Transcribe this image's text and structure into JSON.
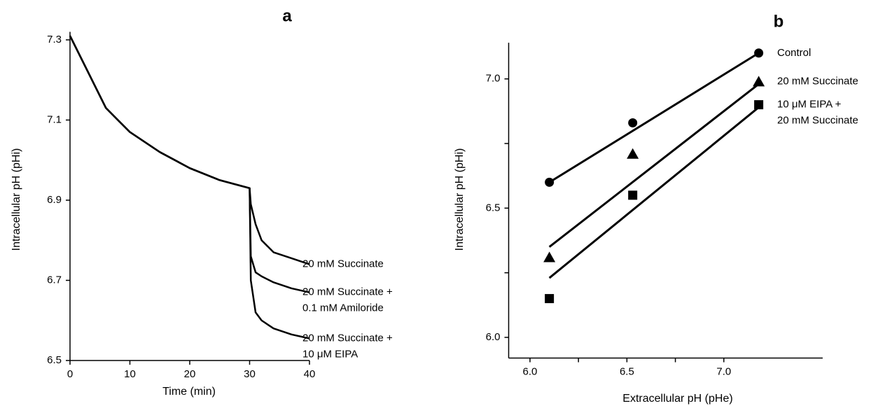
{
  "chart_data": [
    {
      "type": "line",
      "title": "a",
      "x_label": "Time (min)",
      "y_label": "Intracellular pH (pHi)",
      "x": [
        0,
        2,
        4,
        6,
        8,
        10,
        15,
        20,
        25,
        30,
        30.2,
        31,
        32,
        34,
        37,
        40
      ],
      "xlim": [
        0,
        40
      ],
      "xticks": [
        0,
        10,
        20,
        30,
        40
      ],
      "ylim": [
        6.5,
        7.32
      ],
      "yticks": [
        6.5,
        6.7,
        6.9,
        7.1,
        7.3
      ],
      "series": [
        {
          "name": "20 mM Succinate",
          "color": "#000000",
          "values": [
            7.31,
            7.25,
            7.19,
            7.13,
            7.1,
            7.07,
            7.02,
            6.98,
            6.95,
            6.93,
            6.89,
            6.84,
            6.8,
            6.77,
            6.755,
            6.74
          ]
        },
        {
          "name": "20 mM Succinate +\n0.1 mM Amiloride",
          "color": "#000000",
          "values": [
            7.31,
            7.25,
            7.19,
            7.13,
            7.1,
            7.07,
            7.02,
            6.98,
            6.95,
            6.93,
            6.76,
            6.72,
            6.71,
            6.695,
            6.68,
            6.67
          ]
        },
        {
          "name": "20 mM Succinate +\n10 μM EIPA",
          "color": "#000000",
          "values": [
            7.31,
            7.25,
            7.19,
            7.13,
            7.1,
            7.07,
            7.02,
            6.98,
            6.95,
            6.93,
            6.7,
            6.62,
            6.6,
            6.58,
            6.565,
            6.555
          ]
        }
      ]
    },
    {
      "type": "scatter",
      "title": "b",
      "x_label": "Extracellular pH (pHe)",
      "y_label": "Intracellular pH (pHi)",
      "xlim": [
        5.89,
        7.51
      ],
      "xticks": [
        {
          "value": 6.0,
          "label": "6.0"
        },
        {
          "value": 6.5,
          "label": "6.5"
        },
        {
          "value": 7.0,
          "label": "7.0"
        }
      ],
      "xminorticks": [
        6.25,
        6.75
      ],
      "ylim": [
        5.92,
        7.14
      ],
      "yticks": [
        {
          "value": 6.0,
          "label": "6.0"
        },
        {
          "value": 6.5,
          "label": "6.5"
        },
        {
          "value": 7.0,
          "label": "7.0"
        }
      ],
      "yminorticks": [
        6.25,
        6.75
      ],
      "series": [
        {
          "name": "Control",
          "color": "#000000",
          "marker": "circle",
          "x": [
            6.1,
            6.53,
            7.18
          ],
          "values": [
            6.6,
            6.83,
            7.1
          ],
          "fit_x": [
            6.1,
            7.18
          ],
          "fit_values": [
            6.6,
            7.1
          ]
        },
        {
          "name": "20 mM Succinate",
          "color": "#000000",
          "marker": "triangle",
          "x": [
            6.1,
            6.53,
            7.18
          ],
          "values": [
            6.31,
            6.71,
            6.99
          ],
          "fit_x": [
            6.1,
            7.18
          ],
          "fit_values": [
            6.35,
            6.98
          ]
        },
        {
          "name": "10 μM EIPA +\n20 mM Succinate",
          "color": "#000000",
          "marker": "square",
          "x": [
            6.1,
            6.53,
            7.18
          ],
          "values": [
            6.15,
            6.55,
            6.9
          ],
          "fit_x": [
            6.1,
            7.18
          ],
          "fit_values": [
            6.23,
            6.89
          ]
        }
      ]
    }
  ]
}
